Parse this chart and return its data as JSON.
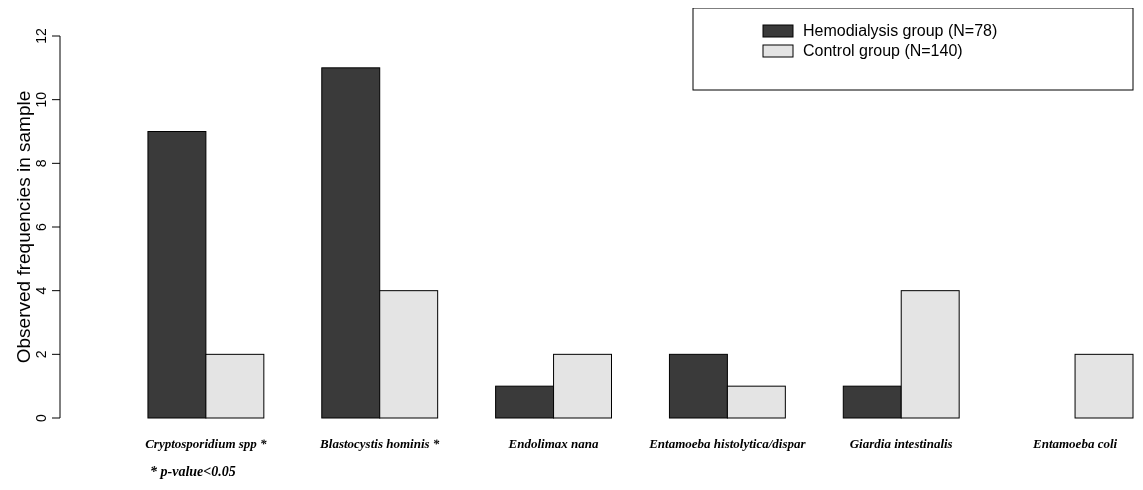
{
  "chart_data": {
    "type": "bar",
    "ylabel": "Observed frequencies in sample",
    "categories": [
      "Cryptosporidium spp *",
      "Blastocystis hominis *",
      "Endolimax nana",
      "Entamoeba histolytica/dispar",
      "Giardia intestinalis",
      "Entamoeba coli"
    ],
    "series": [
      {
        "name": "Hemodialysis group (N=78)",
        "color": "#3a3a3a",
        "values": [
          9,
          11,
          1,
          2,
          1,
          0
        ]
      },
      {
        "name": "Control group (N=140)",
        "color": "#e4e4e4",
        "values": [
          2,
          4,
          2,
          1,
          4,
          2
        ]
      }
    ],
    "ylim": [
      0,
      12
    ],
    "yticks": [
      0,
      2,
      4,
      6,
      8,
      10,
      12
    ],
    "grid": false,
    "legend": "top right",
    "annotations": [
      "* p-value<0.05"
    ]
  }
}
